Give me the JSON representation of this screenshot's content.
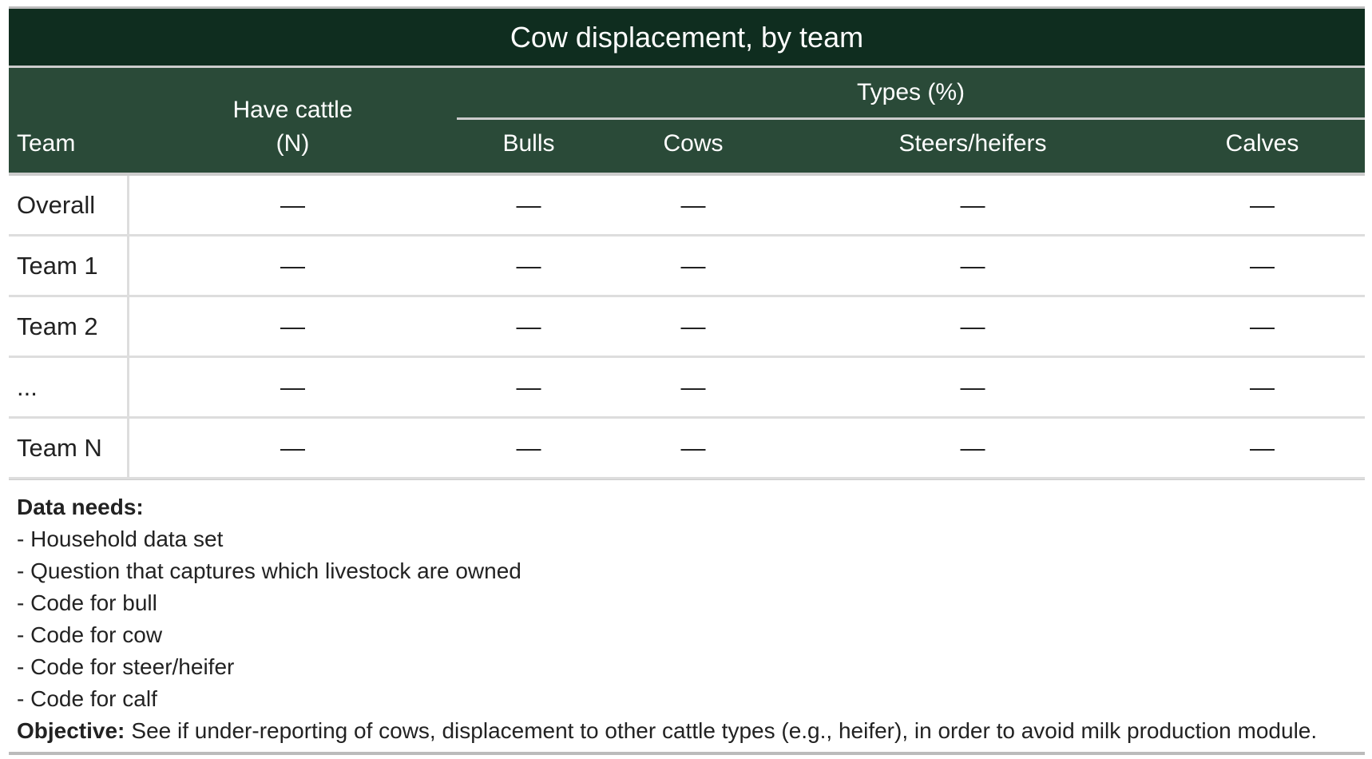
{
  "title": "Cow displacement, by team",
  "header": {
    "team": "Team",
    "have_cattle": [
      "Have cattle",
      "(N)"
    ],
    "types_group": "Types (%)",
    "types": [
      "Bulls",
      "Cows",
      "Steers/heifers",
      "Calves"
    ]
  },
  "rows": [
    {
      "label": "Overall",
      "cells": [
        "—",
        "—",
        "—",
        "—",
        "—"
      ]
    },
    {
      "label": "Team 1",
      "cells": [
        "—",
        "—",
        "—",
        "—",
        "—"
      ]
    },
    {
      "label": "Team 2",
      "cells": [
        "—",
        "—",
        "—",
        "—",
        "—"
      ]
    },
    {
      "label": "...",
      "cells": [
        "—",
        "—",
        "—",
        "—",
        "—"
      ]
    },
    {
      "label": "Team N",
      "cells": [
        "—",
        "—",
        "—",
        "—",
        "—"
      ]
    }
  ],
  "notes": {
    "data_needs_label": "Data needs:",
    "data_needs": [
      "- Household data set",
      "- Question that captures which livestock are owned",
      "- Code for bull",
      "- Code for cow",
      "- Code for steer/heifer",
      "- Code for calf"
    ],
    "objective_label": "Objective:",
    "objective": "See if under-reporting of cows, displacement to other cattle types (e.g., heifer), in order to avoid milk production module."
  }
}
